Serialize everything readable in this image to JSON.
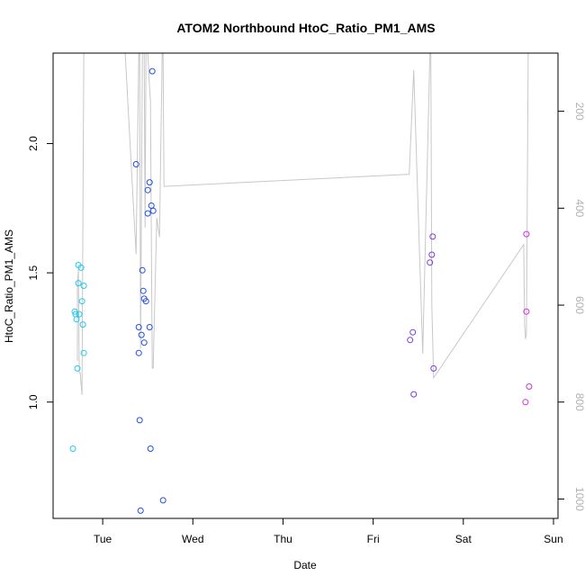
{
  "chart_data": {
    "type": "scatter",
    "title": "ATOM2 Northbound HtoC_Ratio_PM1_AMS",
    "xlabel": "Date",
    "ylabel": "HtoC_Ratio_PM1_AMS",
    "x_ticks": [
      "Tue",
      "Wed",
      "Thu",
      "Fri",
      "Sat",
      "Sun"
    ],
    "y_ticks": [
      "1.0",
      "1.5",
      "2.0"
    ],
    "y2_ticks": [
      "200",
      "400",
      "600",
      "800",
      "1000"
    ],
    "ylim": [
      0.55,
      2.35
    ],
    "y2lim": [
      1040,
      80
    ],
    "xlim_days": [
      -0.55,
      5.05
    ],
    "points": [
      {
        "t": -0.33,
        "v": 0.82,
        "c": "#22c8f0"
      },
      {
        "t": -0.31,
        "v": 1.35,
        "c": "#22c8f0"
      },
      {
        "t": -0.3,
        "v": 1.34,
        "c": "#22c8f0"
      },
      {
        "t": -0.29,
        "v": 1.32,
        "c": "#22c8f0"
      },
      {
        "t": -0.28,
        "v": 1.13,
        "c": "#22c8f0"
      },
      {
        "t": -0.27,
        "v": 1.46,
        "c": "#22c8f0"
      },
      {
        "t": -0.27,
        "v": 1.53,
        "c": "#22c8f0"
      },
      {
        "t": -0.26,
        "v": 1.34,
        "c": "#22c8f0"
      },
      {
        "t": -0.24,
        "v": 1.52,
        "c": "#22c8f0"
      },
      {
        "t": -0.23,
        "v": 1.39,
        "c": "#22c8f0"
      },
      {
        "t": -0.22,
        "v": 1.3,
        "c": "#22c8f0"
      },
      {
        "t": -0.21,
        "v": 1.45,
        "c": "#22c8f0"
      },
      {
        "t": -0.21,
        "v": 1.19,
        "c": "#22c8f0"
      },
      {
        "t": 0.37,
        "v": 1.92,
        "c": "#2050e0"
      },
      {
        "t": 0.4,
        "v": 1.19,
        "c": "#2050e0"
      },
      {
        "t": 0.4,
        "v": 1.29,
        "c": "#2050e0"
      },
      {
        "t": 0.41,
        "v": 0.93,
        "c": "#2050e0"
      },
      {
        "t": 0.42,
        "v": 0.58,
        "c": "#2050e0"
      },
      {
        "t": 0.43,
        "v": 1.26,
        "c": "#2050e0"
      },
      {
        "t": 0.44,
        "v": 1.51,
        "c": "#2050e0"
      },
      {
        "t": 0.45,
        "v": 1.43,
        "c": "#2050e0"
      },
      {
        "t": 0.46,
        "v": 1.4,
        "c": "#2050e0"
      },
      {
        "t": 0.46,
        "v": 1.23,
        "c": "#2050e0"
      },
      {
        "t": 0.48,
        "v": 1.39,
        "c": "#2050e0"
      },
      {
        "t": 0.5,
        "v": 1.82,
        "c": "#2050e0"
      },
      {
        "t": 0.5,
        "v": 1.73,
        "c": "#2050e0"
      },
      {
        "t": 0.52,
        "v": 1.85,
        "c": "#2050e0"
      },
      {
        "t": 0.52,
        "v": 1.29,
        "c": "#2050e0"
      },
      {
        "t": 0.53,
        "v": 0.82,
        "c": "#2050e0"
      },
      {
        "t": 0.54,
        "v": 1.76,
        "c": "#2050e0"
      },
      {
        "t": 0.55,
        "v": 2.28,
        "c": "#2050e0"
      },
      {
        "t": 0.56,
        "v": 1.74,
        "c": "#2050e0"
      },
      {
        "t": 0.67,
        "v": 0.62,
        "c": "#2050e0"
      },
      {
        "t": 3.41,
        "v": 1.24,
        "c": "#7a3ae0"
      },
      {
        "t": 3.44,
        "v": 1.27,
        "c": "#7a3ae0"
      },
      {
        "t": 3.45,
        "v": 1.03,
        "c": "#7a3ae0"
      },
      {
        "t": 3.63,
        "v": 1.54,
        "c": "#7a3ae0"
      },
      {
        "t": 3.65,
        "v": 1.57,
        "c": "#7a3ae0"
      },
      {
        "t": 3.66,
        "v": 1.64,
        "c": "#7a3ae0"
      },
      {
        "t": 3.67,
        "v": 1.13,
        "c": "#7a3ae0"
      },
      {
        "t": 4.69,
        "v": 1.0,
        "c": "#d030e0"
      },
      {
        "t": 4.7,
        "v": 1.65,
        "c": "#d030e0"
      },
      {
        "t": 4.7,
        "v": 1.35,
        "c": "#d030e0"
      },
      {
        "t": 4.73,
        "v": 1.06,
        "c": "#d030e0"
      }
    ],
    "altitude_line": {
      "color": "#c8c8c8",
      "points": [
        [
          -0.28,
          715
        ],
        [
          -0.28,
          560
        ],
        [
          -0.27,
          525
        ],
        [
          -0.26,
          740
        ],
        [
          -0.25,
          740
        ],
        [
          -0.23,
          785
        ],
        [
          -0.21,
          80
        ],
        [
          0.25,
          80
        ],
        [
          0.37,
          495
        ],
        [
          0.4,
          80
        ],
        [
          0.41,
          80
        ],
        [
          0.42,
          690
        ],
        [
          0.44,
          80
        ],
        [
          0.46,
          80
        ],
        [
          0.47,
          440
        ],
        [
          0.48,
          80
        ],
        [
          0.5,
          80
        ],
        [
          0.52,
          150
        ],
        [
          0.53,
          180
        ],
        [
          0.54,
          470
        ],
        [
          0.55,
          730
        ],
        [
          0.56,
          730
        ],
        [
          0.6,
          420
        ],
        [
          0.63,
          460
        ],
        [
          0.66,
          80
        ],
        [
          0.67,
          80
        ],
        [
          0.68,
          355
        ],
        [
          3.4,
          330
        ],
        [
          3.45,
          115
        ],
        [
          3.55,
          700
        ],
        [
          3.63,
          80
        ],
        [
          3.64,
          80
        ],
        [
          3.65,
          600
        ],
        [
          3.67,
          750
        ],
        [
          4.67,
          475
        ],
        [
          4.68,
          640
        ],
        [
          4.69,
          670
        ],
        [
          4.7,
          660
        ],
        [
          4.72,
          80
        ]
      ]
    },
    "grid": false,
    "legend": "none"
  }
}
